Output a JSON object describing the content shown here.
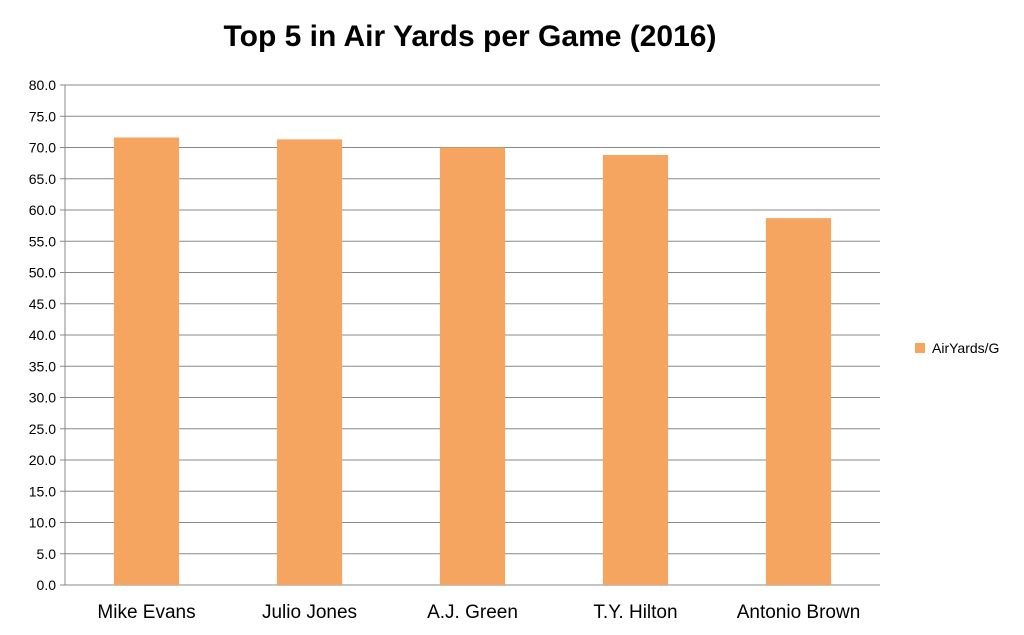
{
  "chart_data": {
    "type": "bar",
    "title": "Top 5 in Air Yards per Game (2016)",
    "xlabel": "",
    "ylabel": "",
    "categories": [
      "Mike Evans",
      "Julio Jones",
      "A.J. Green",
      "T.Y. Hilton",
      "Antonio Brown"
    ],
    "series": [
      {
        "name": "AirYards/G",
        "values": [
          71.6,
          71.3,
          70.0,
          68.8,
          58.7
        ],
        "color": "#F5A55F"
      }
    ],
    "ylim": [
      0,
      80
    ],
    "ytick_step": 5,
    "ytick_labels": [
      "0.0",
      "5.0",
      "10.0",
      "15.0",
      "20.0",
      "25.0",
      "30.0",
      "35.0",
      "40.0",
      "45.0",
      "50.0",
      "55.0",
      "60.0",
      "65.0",
      "70.0",
      "75.0",
      "80.0"
    ],
    "grid": true,
    "legend_position": "right"
  }
}
